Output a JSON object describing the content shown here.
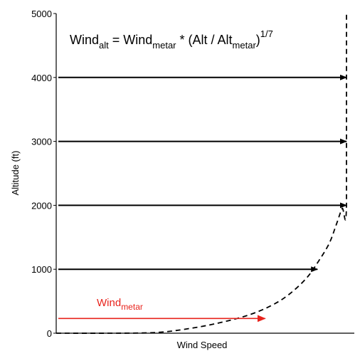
{
  "chart_data": {
    "type": "line",
    "title": "",
    "xlabel": "Wind Speed",
    "ylabel": "Altitude (ft)",
    "ylim": [
      0,
      5000
    ],
    "yticks": [
      "0",
      "1000",
      "2000",
      "3000",
      "4000",
      "5000"
    ],
    "grid": false,
    "formula": {
      "lhs_main": "Wind",
      "lhs_sub": "alt",
      "eq": " = ",
      "wind": "Wind",
      "metar_sub": "metar",
      "mult": " * (Alt / Alt",
      "alt_sub": "metar",
      "close": ")",
      "exponent": "1/7"
    },
    "series": [
      {
        "name": "",
        "style": "dashed",
        "color": "#000000",
        "x_relative": [
          0,
          0.19,
          0.34,
          0.44,
          0.55,
          0.66,
          0.74,
          0.8,
          0.86,
          0.9,
          0.94,
          0.965,
          0.985,
          1.0,
          1.0
        ],
        "y": [
          0,
          0,
          10,
          60,
          150,
          280,
          430,
          600,
          850,
          1100,
          1400,
          1700,
          1950,
          2000,
          5000
        ]
      }
    ],
    "arrows": [
      {
        "altitude": 4000,
        "x_relative": 1.0,
        "color": "#000000"
      },
      {
        "altitude": 3000,
        "x_relative": 1.0,
        "color": "#000000"
      },
      {
        "altitude": 2000,
        "x_relative": 1.0,
        "color": "#000000"
      },
      {
        "altitude": 1000,
        "x_relative": 0.9,
        "color": "#000000"
      },
      {
        "altitude": 230,
        "x_relative": 0.72,
        "color": "#e8231c"
      }
    ],
    "annotations": [
      {
        "text_main": "Wind",
        "text_sub": "metar",
        "color": "#e8231c"
      }
    ]
  }
}
